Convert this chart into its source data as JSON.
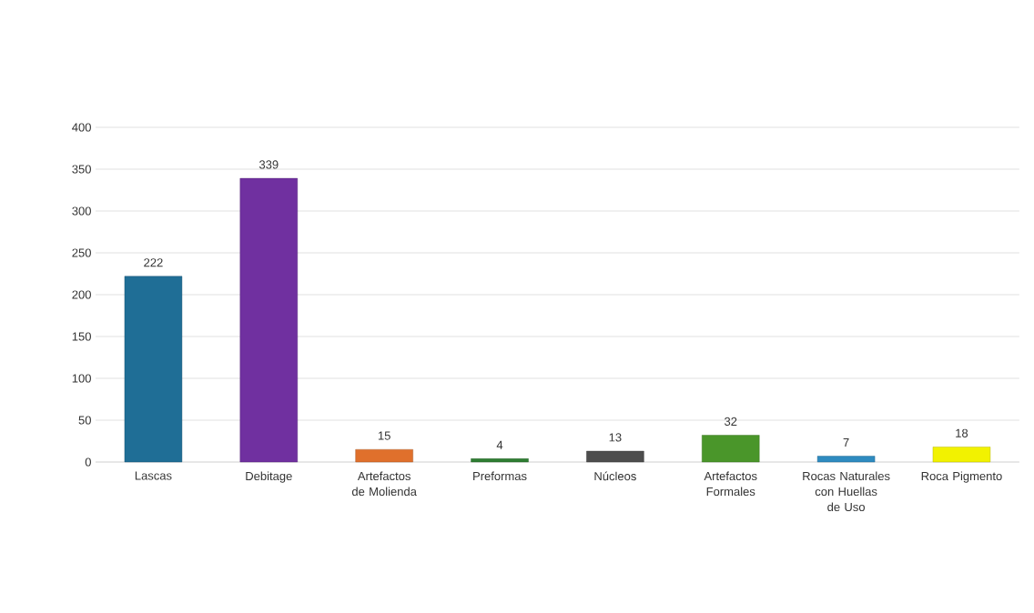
{
  "chart_data": {
    "type": "bar",
    "categories": [
      "Lascas",
      "Debitage",
      "Artefactos de Molienda",
      "Preformas",
      "Núcleos",
      "Artefactos Formales",
      "Rocas Naturales con Huellas de Uso",
      "Roca Pigmento"
    ],
    "values": [
      222,
      339,
      15,
      4,
      13,
      32,
      7,
      18
    ],
    "colors": [
      "#1f6e96",
      "#7030a0",
      "#e0702c",
      "#2e7d32",
      "#4d4d4d",
      "#4a962a",
      "#2e8bc0",
      "#f2f200"
    ],
    "ylim": [
      0,
      400
    ],
    "yticks": [
      0,
      50,
      100,
      150,
      200,
      250,
      300,
      350,
      400
    ],
    "grid": "y",
    "data_labels": true
  }
}
